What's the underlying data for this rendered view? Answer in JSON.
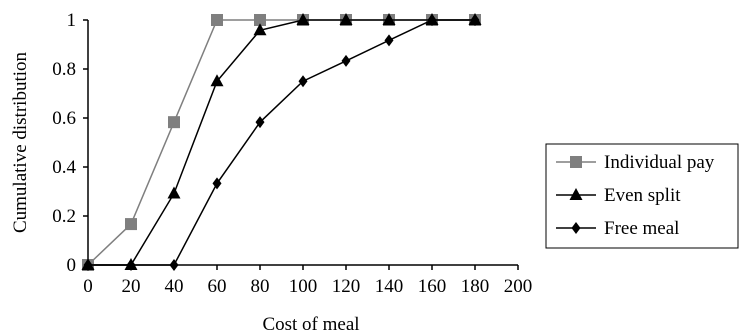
{
  "chart_data": {
    "type": "line",
    "title": "",
    "xlabel": "Cost of meal",
    "ylabel": "Cumulative distribution",
    "xlim": [
      0,
      200
    ],
    "ylim": [
      0,
      1
    ],
    "xticks": [
      "0",
      "20",
      "40",
      "60",
      "80",
      "100",
      "120",
      "140",
      "160",
      "180",
      "200"
    ],
    "yticks": [
      "0",
      "0.2",
      "0.4",
      "0.6",
      "0.8",
      "1"
    ],
    "grid": false,
    "legend_position": "right",
    "x": [
      0,
      20,
      40,
      60,
      80,
      100,
      120,
      140,
      160,
      180
    ],
    "series": [
      {
        "name": "Individual pay",
        "marker": "square",
        "color": "#7f7f7f",
        "values": [
          0,
          0.167,
          0.583,
          1,
          1,
          1,
          1,
          1,
          1,
          1
        ]
      },
      {
        "name": "Even split",
        "marker": "triangle",
        "color": "#000000",
        "values": [
          0,
          0,
          0.292,
          0.75,
          0.958,
          1,
          1,
          1,
          1,
          1
        ]
      },
      {
        "name": "Free meal",
        "marker": "diamond",
        "color": "#000000",
        "values": [
          0,
          0,
          0,
          0.333,
          0.583,
          0.75,
          0.833,
          0.917,
          1,
          1
        ]
      }
    ]
  }
}
